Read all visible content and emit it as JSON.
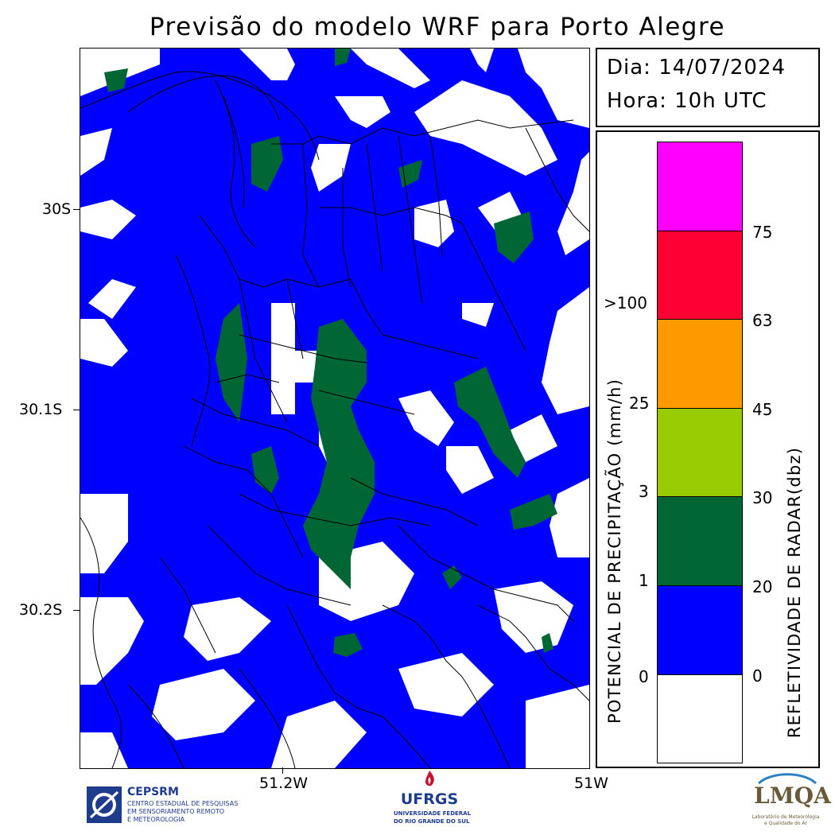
{
  "title": "Previsão do modelo WRF para Porto Alegre",
  "info": {
    "date_line": "Dia: 14/07/2024",
    "hour_line": "Hora: 10h UTC"
  },
  "map": {
    "lat_labels": [
      "30S",
      "30.1S",
      "30.2S"
    ],
    "lon_labels": [
      "51.2W",
      "51W"
    ]
  },
  "legend": {
    "left_title": "POTENCIAL DE PRECIPITAÇÃO (mm/h)",
    "right_title": "REFLETIVIDADE DE RADAR(dbz)",
    "colors": [
      "#ff00ff",
      "#ff0033",
      "#ff9900",
      "#99cc00",
      "#006633",
      "#0000ff",
      "#ffffff"
    ],
    "precip_values": [
      ">100",
      "25",
      "3",
      "1",
      "0"
    ],
    "dbz_values": [
      "75",
      "63",
      "45",
      "30",
      "20",
      "0"
    ]
  },
  "logos": {
    "cepsrm_name": "CEPSRM",
    "cepsrm_line1": "CENTRO ESTADUAL DE PESQUISAS",
    "cepsrm_line2": "EM SENSORIAMENTO REMOTO",
    "cepsrm_line3": "E METEOROLOGIA",
    "ufrgs_name": "UFRGS",
    "ufrgs_line1": "UNIVERSIDADE FEDERAL",
    "ufrgs_line2": "DO RIO GRANDE DO SUL",
    "lmqa_name": "LMQA",
    "lmqa_line1": "Laboratório de Meteorologia",
    "lmqa_line2": "e Qualidade do Ar"
  }
}
